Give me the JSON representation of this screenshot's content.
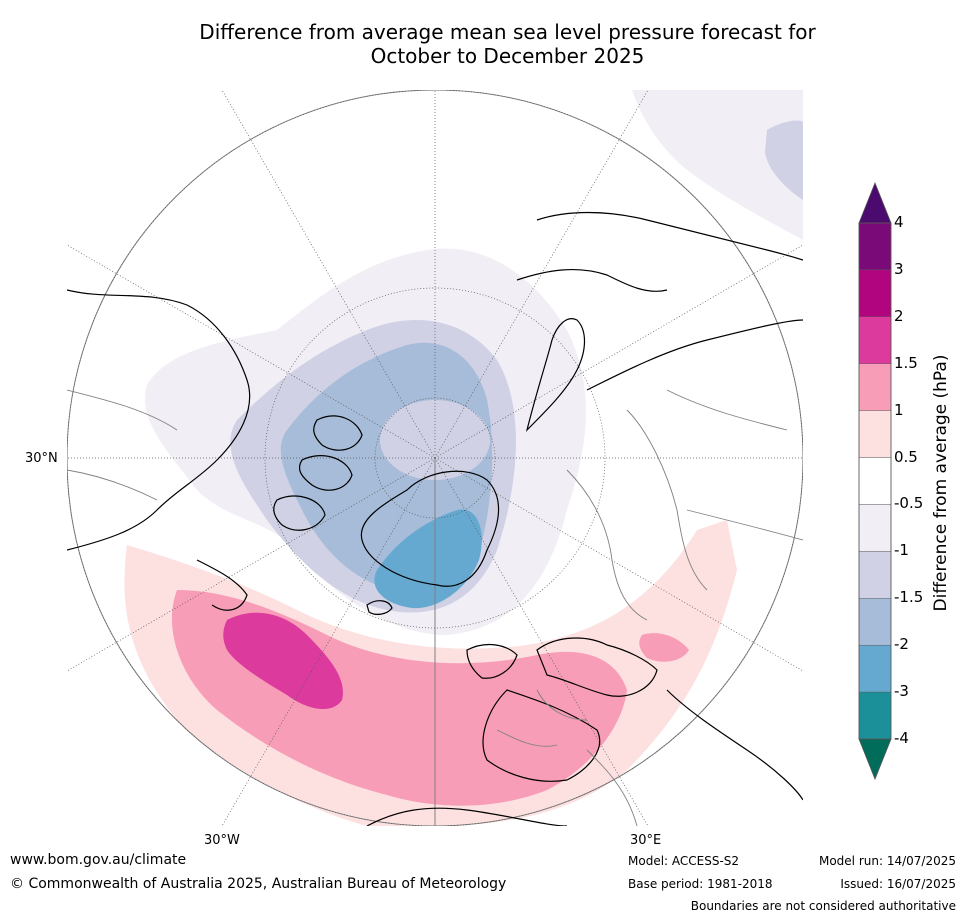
{
  "title_line1": "Difference from average mean sea level pressure forecast for",
  "title_line2": "October to December 2025",
  "map": {
    "lat_labels": [
      "30°N"
    ],
    "lon_labels": [
      "30°W",
      "30°E"
    ]
  },
  "colorbar": {
    "title": "Difference from average (hPa)",
    "tick_labels": [
      "4",
      "3",
      "2",
      "1.5",
      "1",
      "0.5",
      "-0.5",
      "-1",
      "-1.5",
      "-2",
      "-3",
      "-4"
    ],
    "colors": [
      "#4b0a6e",
      "#7a0a78",
      "#b0057f",
      "#dc3a9c",
      "#f79db8",
      "#fde0e0",
      "#ffffff",
      "#f1eef5",
      "#d1d1e6",
      "#a7bcd9",
      "#66a9d0",
      "#1c9099",
      "#016c59"
    ]
  },
  "footer": {
    "url": "www.bom.gov.au/climate",
    "copyright": "© Commonwealth of Australia 2025, Australian Bureau of Meteorology",
    "model": "Model: ACCESS-S2",
    "base_period": "Base period: 1981-2018",
    "model_run": "Model run: 14/07/2025",
    "issued": "Issued: 16/07/2025",
    "disclaimer": "Boundaries are not considered authoritative"
  }
}
